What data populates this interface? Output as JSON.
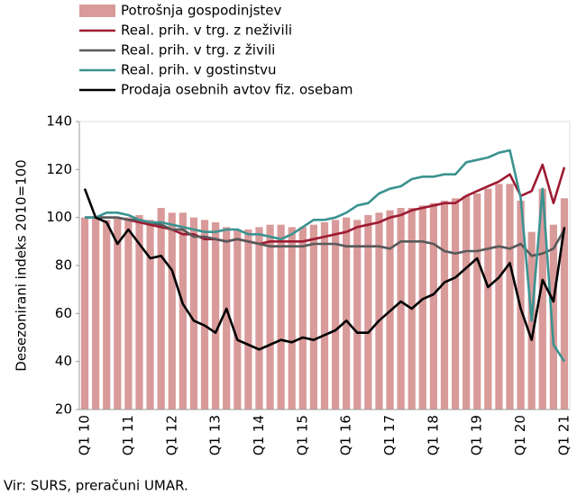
{
  "chart_data": {
    "type": "bar",
    "y_axis_label": "Desezonirani indeks 2010=100",
    "source": "Vir: SURS, preračuni UMAR.",
    "categories": [
      "Q1 10",
      null,
      null,
      null,
      "Q1 11",
      null,
      null,
      null,
      "Q1 12",
      null,
      null,
      null,
      "Q1 13",
      null,
      null,
      null,
      "Q1 14",
      null,
      null,
      null,
      "Q1 15",
      null,
      null,
      null,
      "Q1 16",
      null,
      null,
      null,
      "Q1 17",
      null,
      null,
      null,
      "Q1 18",
      null,
      null,
      null,
      "Q1 19",
      null,
      null,
      null,
      "Q1 20",
      null,
      null,
      null,
      "Q1 21"
    ],
    "ylim": [
      20,
      140
    ],
    "yticks": [
      20,
      40,
      60,
      80,
      100,
      120,
      140
    ],
    "legend": "top-left",
    "series": [
      {
        "name": "Potrošnja gospodinjstev",
        "type": "bar",
        "color": "#d99a9a",
        "values": [
          100,
          100,
          99,
          100,
          100,
          101,
          99,
          104,
          102,
          102,
          100,
          99,
          98,
          96,
          95,
          95,
          96,
          97,
          97,
          96,
          96,
          97,
          98,
          99,
          100,
          99,
          101,
          102,
          103,
          104,
          104,
          105,
          106,
          107,
          108,
          109,
          110,
          112,
          114,
          114,
          107,
          94,
          112,
          97,
          108
        ]
      },
      {
        "name": "Real. prih. v trg. z neživili",
        "type": "line",
        "color": "#9e1b32",
        "values": [
          100,
          100,
          100,
          100,
          99,
          98,
          97,
          96,
          95,
          93,
          93,
          91,
          91,
          90,
          91,
          90,
          89,
          90,
          90,
          90,
          90,
          91,
          92,
          93,
          94,
          96,
          97,
          98,
          100,
          101,
          103,
          104,
          105,
          106,
          106,
          109,
          111,
          113,
          115,
          118,
          109,
          111,
          122,
          106,
          121
        ]
      },
      {
        "name": "Real. prih. v trg. z živili",
        "type": "line",
        "color": "#595959",
        "values": [
          100,
          100,
          100,
          100,
          99,
          99,
          98,
          97,
          95,
          95,
          92,
          92,
          91,
          90,
          91,
          90,
          89,
          88,
          88,
          88,
          88,
          89,
          89,
          89,
          88,
          88,
          88,
          88,
          87,
          90,
          90,
          90,
          89,
          86,
          85,
          86,
          86,
          87,
          88,
          87,
          89,
          84,
          85,
          87,
          95
        ]
      },
      {
        "name": "Real. prih. v gostinstvu",
        "type": "line",
        "color": "#3a9390",
        "values": [
          100,
          100,
          102,
          102,
          101,
          99,
          98,
          98,
          97,
          96,
          95,
          94,
          94,
          95,
          95,
          93,
          93,
          92,
          91,
          93,
          96,
          99,
          99,
          100,
          102,
          105,
          106,
          110,
          112,
          113,
          116,
          117,
          117,
          118,
          118,
          123,
          124,
          125,
          127,
          128,
          108,
          57,
          112,
          47,
          40
        ]
      },
      {
        "name": "Prodaja osebnih avtov fiz. osebam",
        "type": "line",
        "color": "#000000",
        "values": [
          112,
          100,
          98,
          89,
          95,
          89,
          83,
          84,
          78,
          64,
          57,
          55,
          52,
          62,
          49,
          47,
          45,
          47,
          49,
          48,
          50,
          49,
          51,
          53,
          57,
          52,
          52,
          57,
          61,
          65,
          62,
          66,
          68,
          73,
          75,
          79,
          83,
          71,
          75,
          81,
          62,
          49,
          74,
          65,
          96
        ]
      }
    ]
  }
}
